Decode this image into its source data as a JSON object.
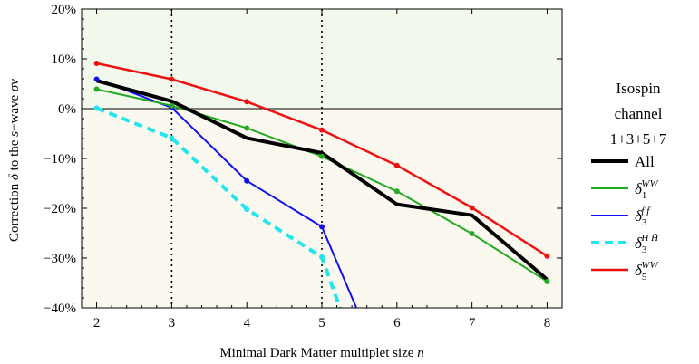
{
  "chart_data": {
    "type": "line",
    "xlabel": "Minimal Dark Matter multiplet size ",
    "xlabel_var": "n",
    "ylabel_prefix": "Correction ",
    "ylabel_delta": "δ",
    "ylabel_mid": " to the ",
    "ylabel_s": "s",
    "ylabel_suffix": "−wave ",
    "ylabel_sigma": "σv",
    "xlim": [
      1.8,
      8.2
    ],
    "ylim": [
      -40,
      20
    ],
    "x_ticks": [
      2,
      3,
      4,
      5,
      6,
      7,
      8
    ],
    "y_ticks": [
      {
        "value": 20,
        "label": "20%"
      },
      {
        "value": 10,
        "label": "10%"
      },
      {
        "value": 0,
        "label": "0%"
      },
      {
        "value": -10,
        "label": "−10%"
      },
      {
        "value": -20,
        "label": "−20%"
      },
      {
        "value": -30,
        "label": "−30%"
      },
      {
        "value": -40,
        "label": "−40%"
      }
    ],
    "vertical_lines": [
      3,
      5
    ],
    "background": {
      "upper_color": "#f3f8ec",
      "lower_color": "#fbf9ef"
    },
    "legend": {
      "title_lines": [
        "Isospin",
        "channel",
        "1+3+5+7"
      ],
      "placement": "right"
    },
    "series": [
      {
        "key": "all",
        "name": "All",
        "color": "#000000",
        "width": 4,
        "dashed": false,
        "markers": false,
        "x": [
          2,
          3,
          4,
          5,
          6,
          7,
          8
        ],
        "y": [
          5.6,
          1.5,
          -5.9,
          -8.9,
          -19.2,
          -21.4,
          -34.3
        ]
      },
      {
        "key": "d1ww",
        "name": "δ",
        "sub": "1",
        "sup": "WW",
        "color": "#22aa22",
        "width": 2,
        "dashed": false,
        "markers": true,
        "x": [
          2,
          3,
          4,
          5,
          6,
          7,
          8
        ],
        "y": [
          3.9,
          0.6,
          -3.9,
          -9.6,
          -16.6,
          -25.1,
          -34.7
        ]
      },
      {
        "key": "d3ff",
        "name": "δ",
        "sub": "3",
        "sup": "f f̄",
        "color": "#1111ee",
        "width": 2,
        "dashed": false,
        "markers": true,
        "x": [
          2,
          3,
          4,
          5,
          5.46
        ],
        "y": [
          5.9,
          0.2,
          -14.5,
          -23.7,
          -40
        ]
      },
      {
        "key": "d3hh",
        "name": "δ",
        "sub": "3",
        "sup": "H H̄",
        "color": "#22e5ee",
        "width": 4,
        "dashed": true,
        "markers": true,
        "x": [
          2,
          3,
          4,
          5,
          5.24
        ],
        "y": [
          0.1,
          -5.9,
          -20.2,
          -29.8,
          -40
        ]
      },
      {
        "key": "d5ww",
        "name": "δ",
        "sub": "5",
        "sup": "WW",
        "color": "#ee1111",
        "width": 2.5,
        "dashed": false,
        "markers": true,
        "x": [
          2,
          3,
          4,
          5,
          6,
          7,
          8
        ],
        "y": [
          9.1,
          5.9,
          1.4,
          -4.3,
          -11.4,
          -19.9,
          -29.6
        ]
      }
    ]
  }
}
